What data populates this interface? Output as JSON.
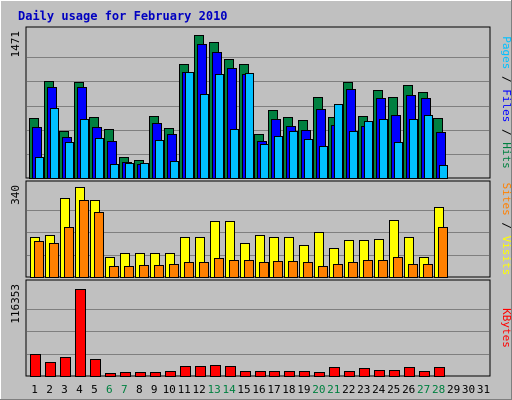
{
  "colors": {
    "frame_bg": "#c0c0c0",
    "plot_bg": "#c0c0c0",
    "grid": "#7f7f7f",
    "title": "#0000c0",
    "hits": "#008040",
    "files": "#0000ff",
    "pages": "#00c0ff",
    "visits": "#ffff00",
    "sites": "#ff8000",
    "kbytes": "#ff0000",
    "weekday_label": "#000000",
    "weekend_label": "#008040",
    "separator": "#000000"
  },
  "chart_data": {
    "type": "bar",
    "title": "Daily usage for February 2010",
    "categories": [
      "1",
      "2",
      "3",
      "4",
      "5",
      "6",
      "7",
      "8",
      "9",
      "10",
      "11",
      "12",
      "13",
      "14",
      "15",
      "16",
      "17",
      "18",
      "19",
      "20",
      "21",
      "22",
      "23",
      "24",
      "25",
      "26",
      "27",
      "28",
      "29",
      "30",
      "31"
    ],
    "weekend_days": [
      6,
      7,
      13,
      14,
      20,
      21,
      27,
      28
    ],
    "panels": [
      {
        "id": "hits_panel",
        "ymax_label": "1471",
        "ylim": [
          0,
          1471
        ],
        "legend": [
          {
            "text": "Pages",
            "color_key": "pages"
          },
          {
            "text": " / ",
            "color_key": "separator"
          },
          {
            "text": "Files",
            "color_key": "files"
          },
          {
            "text": " / ",
            "color_key": "separator"
          },
          {
            "text": "Hits",
            "color_key": "hits"
          }
        ],
        "series": [
          {
            "name": "Hits",
            "color_key": "hits",
            "values": [
              610,
              980,
              480,
              970,
              620,
              500,
              210,
              180,
              630,
              510,
              1160,
              1450,
              1380,
              1210,
              1160,
              450,
              690,
              620,
              590,
              820,
              620,
              970,
              630,
              890,
              820,
              940,
              870,
              610,
              0,
              0,
              0
            ]
          },
          {
            "name": "Files",
            "color_key": "files",
            "values": [
              520,
              920,
              420,
              920,
              520,
              380,
              160,
              140,
              560,
              450,
              1080,
              1360,
              1280,
              1120,
              1060,
              380,
              600,
              530,
              490,
              700,
              540,
              900,
              530,
              810,
              640,
              840,
              810,
              470,
              0,
              0,
              0
            ]
          },
          {
            "name": "Pages",
            "color_key": "pages",
            "values": [
              210,
              710,
              370,
              600,
              410,
              140,
              150,
              150,
              390,
              170,
              1080,
              850,
              1050,
              500,
              1070,
              340,
              430,
              480,
              400,
              320,
              750,
              480,
              580,
              600,
              370,
              600,
              640,
              130,
              0,
              0,
              0
            ]
          }
        ]
      },
      {
        "id": "visits_panel",
        "ymax_label": "340",
        "ylim": [
          0,
          340
        ],
        "legend": [
          {
            "text": "Sites",
            "color_key": "sites"
          },
          {
            "text": " / ",
            "color_key": "separator"
          },
          {
            "text": "Visits",
            "color_key": "visits"
          }
        ],
        "series": [
          {
            "name": "Visits",
            "color_key": "visits",
            "values": [
              150,
              160,
              300,
              340,
              290,
              75,
              90,
              90,
              90,
              90,
              150,
              150,
              210,
              210,
              130,
              160,
              150,
              150,
              120,
              170,
              110,
              140,
              140,
              145,
              215,
              150,
              75,
              265,
              0,
              0,
              0
            ]
          },
          {
            "name": "Sites",
            "color_key": "sites",
            "values": [
              135,
              130,
              190,
              290,
              245,
              40,
              40,
              45,
              45,
              50,
              55,
              55,
              70,
              65,
              65,
              55,
              60,
              60,
              55,
              40,
              50,
              55,
              65,
              65,
              75,
              50,
              50,
              190,
              0,
              0,
              0
            ]
          }
        ]
      },
      {
        "id": "kbytes_panel",
        "ymax_label": "116353",
        "ylim": [
          0,
          116353
        ],
        "legend": [
          {
            "text": "KBytes",
            "color_key": "kbytes"
          }
        ],
        "series": [
          {
            "name": "KBytes",
            "color_key": "kbytes",
            "values": [
              29000,
              18500,
              24000,
              112000,
              22000,
              4200,
              5000,
              5500,
              5000,
              6000,
              13000,
              13500,
              14500,
              13500,
              7000,
              7000,
              6500,
              7000,
              7000,
              5500,
              12000,
              7000,
              10500,
              8000,
              8000,
              11500,
              7000,
              11500,
              0,
              0,
              0
            ]
          }
        ]
      }
    ]
  }
}
